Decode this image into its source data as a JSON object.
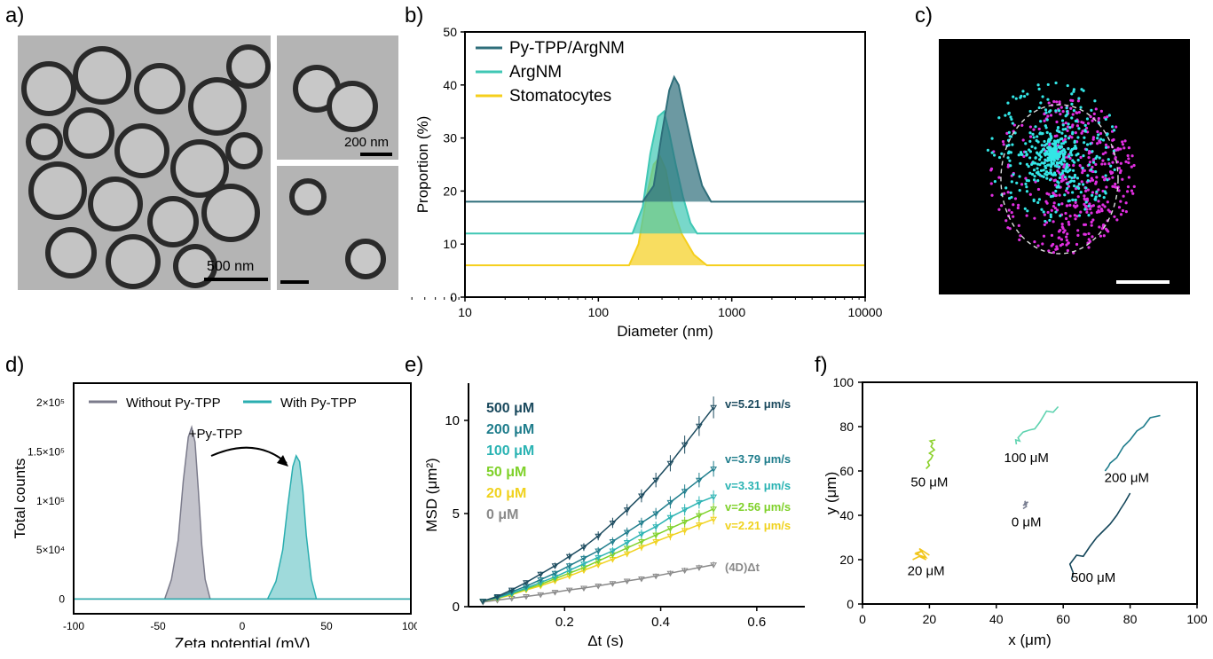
{
  "panels": {
    "a": "a)",
    "b": "b)",
    "c": "c)",
    "d": "d)",
    "e": "e)",
    "f": "f)"
  },
  "micrographs": {
    "main_scale": "500 nm",
    "inset_scale": "200 nm"
  },
  "chart_data": [
    {
      "id": "b",
      "type": "area",
      "xlabel": "Diameter (nm)",
      "ylabel": "Proportion (%)",
      "xscale": "log",
      "xlim": [
        10,
        10000
      ],
      "ylim": [
        0,
        50
      ],
      "xticks": [
        "10",
        "100",
        "1000",
        "10000"
      ],
      "yticks": [
        "0",
        "10",
        "20",
        "30",
        "40",
        "50"
      ],
      "legend_position": "top-left",
      "series": [
        {
          "name": "Py-TPP/ArgNM",
          "color": "#2e6e7a",
          "baseline": 18,
          "x": [
            10,
            215,
            260,
            300,
            340,
            370,
            400,
            450,
            520,
            600,
            700,
            10000
          ],
          "y": [
            18,
            18,
            21,
            31,
            39,
            41.5,
            40,
            34,
            27,
            21,
            18,
            18
          ]
        },
        {
          "name": "ArgNM",
          "color": "#3fc7b4",
          "baseline": 12,
          "x": [
            10,
            180,
            215,
            245,
            280,
            310,
            340,
            380,
            430,
            490,
            550,
            10000
          ],
          "y": [
            12,
            12,
            17,
            27,
            34,
            35,
            31,
            25,
            19,
            14,
            12,
            12
          ]
        },
        {
          "name": "Stomatocytes",
          "color": "#f5cf1c",
          "baseline": 6,
          "x": [
            10,
            170,
            200,
            230,
            260,
            290,
            320,
            360,
            420,
            520,
            650,
            10000
          ],
          "y": [
            6,
            6,
            10,
            19,
            25,
            26.5,
            24,
            17,
            12,
            8,
            6,
            6
          ]
        }
      ]
    },
    {
      "id": "d",
      "type": "area",
      "xlabel": "Zeta potential (mV)",
      "ylabel": "Total counts",
      "xlim": [
        -100,
        100
      ],
      "ylim": [
        -15000,
        220000
      ],
      "xticks": [
        "-100",
        "-50",
        "0",
        "50",
        "100"
      ],
      "yticks": [
        {
          "v": 0,
          "label": "0"
        },
        {
          "v": 50000,
          "label": "5×10⁴"
        },
        {
          "v": 100000,
          "label": "1×10⁵"
        },
        {
          "v": 150000,
          "label": "1.5×10⁵"
        },
        {
          "v": 200000,
          "label": "2×10⁵"
        }
      ],
      "annotation": "+Py-TPP",
      "legend_position": "top",
      "series": [
        {
          "name": "Without Py-TPP",
          "color": "#7b7b8b",
          "x": [
            -100,
            -46,
            -42,
            -38,
            -35,
            -32,
            -30,
            -28,
            -26,
            -24,
            -22,
            -19,
            100
          ],
          "y": [
            0,
            0,
            20000,
            60000,
            120000,
            165000,
            175000,
            160000,
            110000,
            55000,
            20000,
            0,
            0
          ]
        },
        {
          "name": "With Py-TPP",
          "color": "#2aaeb0",
          "x": [
            -100,
            15,
            20,
            24,
            27,
            30,
            32,
            34,
            36,
            38,
            41,
            44,
            100
          ],
          "y": [
            0,
            0,
            18000,
            50000,
            95000,
            135000,
            146000,
            140000,
            110000,
            65000,
            20000,
            0,
            0
          ]
        }
      ]
    },
    {
      "id": "e",
      "type": "scatter",
      "xlabel": "Δt (s)",
      "ylabel": "MSD (μm²)",
      "xlim": [
        0,
        0.7
      ],
      "ylim": [
        0,
        12
      ],
      "xticks": [
        "0.2",
        "0.4",
        "0.6"
      ],
      "yticks": [
        "0",
        "5",
        "10"
      ],
      "legend_position": "top-left",
      "x": [
        0.03,
        0.06,
        0.09,
        0.12,
        0.15,
        0.18,
        0.21,
        0.24,
        0.27,
        0.3,
        0.33,
        0.36,
        0.39,
        0.42,
        0.45,
        0.48,
        0.51
      ],
      "series": [
        {
          "name": "500 μM",
          "color": "#1b4a5e",
          "label": "v=5.21 μm/s",
          "y": [
            0.3,
            0.55,
            0.9,
            1.3,
            1.75,
            2.2,
            2.7,
            3.2,
            3.8,
            4.5,
            5.2,
            5.95,
            6.8,
            7.7,
            8.7,
            9.7,
            10.7
          ]
        },
        {
          "name": "200 μM",
          "color": "#1f7d8c",
          "label": "v=3.79 μm/s",
          "y": [
            0.3,
            0.5,
            0.8,
            1.1,
            1.45,
            1.8,
            2.2,
            2.6,
            3.0,
            3.5,
            4.0,
            4.5,
            5.0,
            5.6,
            6.2,
            6.8,
            7.4
          ]
        },
        {
          "name": "100 μM",
          "color": "#2ab3b3",
          "label": "v=3.31 μm/s",
          "y": [
            0.3,
            0.48,
            0.72,
            1.0,
            1.3,
            1.6,
            1.95,
            2.3,
            2.65,
            3.0,
            3.45,
            3.9,
            4.3,
            4.8,
            5.2,
            5.6,
            5.9
          ]
        },
        {
          "name": "50 μM",
          "color": "#7fd12a",
          "label": "v=2.56 μm/s",
          "y": [
            0.3,
            0.46,
            0.68,
            0.95,
            1.2,
            1.5,
            1.8,
            2.1,
            2.45,
            2.8,
            3.15,
            3.5,
            3.85,
            4.2,
            4.55,
            4.9,
            5.25
          ]
        },
        {
          "name": "20 μM",
          "color": "#f0d21e",
          "label": "v=2.21 μm/s",
          "y": [
            0.3,
            0.44,
            0.64,
            0.9,
            1.12,
            1.38,
            1.65,
            1.95,
            2.25,
            2.55,
            2.85,
            3.2,
            3.5,
            3.8,
            4.1,
            4.4,
            4.7
          ]
        },
        {
          "name": "0 μM",
          "color": "#8a8a8a",
          "label": "(4D)Δt",
          "y": [
            0.25,
            0.35,
            0.45,
            0.55,
            0.65,
            0.78,
            0.9,
            1.0,
            1.12,
            1.25,
            1.38,
            1.5,
            1.65,
            1.8,
            1.95,
            2.1,
            2.25
          ]
        }
      ]
    },
    {
      "id": "f",
      "type": "line",
      "xlabel": "x (μm)",
      "ylabel": "y (μm)",
      "xlim": [
        0,
        100
      ],
      "ylim": [
        0,
        100
      ],
      "xticks": [
        "0",
        "20",
        "40",
        "60",
        "80",
        "100"
      ],
      "yticks": [
        "0",
        "20",
        "40",
        "60",
        "80",
        "100"
      ],
      "series": [
        {
          "name": "50 μM",
          "color": "#8bd12a",
          "label_pos": [
            20,
            53
          ],
          "x": [
            19,
            20,
            19.5,
            20.5,
            21,
            20,
            21.5,
            20.5,
            21,
            20.2,
            21.8
          ],
          "y": [
            61,
            62.5,
            64,
            65.5,
            67,
            68,
            69.5,
            71,
            72.5,
            73.5,
            74
          ]
        },
        {
          "name": "100 μM",
          "color": "#5fd3b0",
          "label_pos": [
            49,
            64
          ],
          "x": [
            46,
            45.8,
            47,
            46.5,
            48,
            50,
            51.5,
            53,
            55,
            57,
            58.5
          ],
          "y": [
            72,
            74,
            73.5,
            75,
            77.5,
            78.5,
            79,
            82,
            87,
            86.5,
            89
          ]
        },
        {
          "name": "0 μM",
          "color": "#7a7f92",
          "label_pos": [
            49,
            35
          ],
          "x": [
            48,
            49,
            48.5,
            49.5,
            48,
            49,
            48.5
          ],
          "y": [
            43,
            44,
            45.5,
            46,
            44.5,
            45,
            46.5
          ]
        },
        {
          "name": "20 μM",
          "color": "#f1c51a",
          "label_pos": [
            19,
            13
          ],
          "x": [
            15,
            17,
            19,
            16,
            18,
            20,
            17,
            19,
            16,
            18
          ],
          "y": [
            20,
            21.5,
            20,
            23,
            24,
            22,
            25,
            21,
            22.5,
            24
          ]
        },
        {
          "name": "200 μM",
          "color": "#1f7d8c",
          "label_pos": [
            79,
            55
          ],
          "x": [
            72.5,
            73.5,
            74,
            76,
            78,
            80,
            82,
            84,
            86,
            89
          ],
          "y": [
            60,
            62,
            63.5,
            66,
            71,
            74,
            78,
            80,
            84,
            85
          ]
        },
        {
          "name": "500 μM",
          "color": "#14465a",
          "label_pos": [
            69,
            10
          ],
          "x": [
            62.5,
            63,
            62,
            64,
            66,
            68,
            70,
            72,
            74,
            75,
            76,
            77,
            78.5,
            80
          ],
          "y": [
            11,
            14,
            18,
            22,
            21.5,
            26,
            30,
            33,
            36,
            38,
            40,
            42.5,
            46,
            50
          ]
        }
      ]
    }
  ]
}
